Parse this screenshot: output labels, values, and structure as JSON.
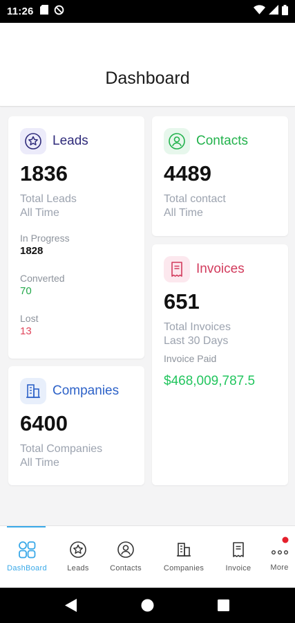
{
  "status_bar": {
    "time": "11:26",
    "left_icons": [
      "sd-card-icon",
      "do-not-disturb-icon"
    ],
    "right_icons": [
      "wifi-icon",
      "signal-icon",
      "battery-icon"
    ]
  },
  "app_bar": {
    "title": "Dashboard"
  },
  "cards": {
    "leads": {
      "label": "Leads",
      "icon": "star-badge-icon",
      "color": "#2e2a7a",
      "tile_bg": "#ecebfa",
      "count": "1836",
      "subtitle": "Total Leads",
      "period": "All Time",
      "stats": [
        {
          "label": "In Progress",
          "value": "1828",
          "color": "#111111"
        },
        {
          "label": "Converted",
          "value": "70",
          "color": "#22a84a"
        },
        {
          "label": "Lost",
          "value": "13",
          "color": "#e0445a"
        }
      ]
    },
    "contacts": {
      "label": "Contacts",
      "icon": "contact-icon",
      "color": "#22b24c",
      "tile_bg": "#e7f7ec",
      "count": "4489",
      "subtitle": "Total contact",
      "period": "All Time"
    },
    "invoices": {
      "label": "Invoices",
      "icon": "invoice-icon",
      "color": "#d23a5c",
      "tile_bg": "#fce8ee",
      "count": "651",
      "subtitle": "Total Invoices",
      "period": "Last 30 Days",
      "paid_label": "Invoice Paid",
      "paid_value": "$468,009,787.5",
      "paid_color": "#22c55e"
    },
    "companies": {
      "label": "Companies",
      "icon": "building-icon",
      "color": "#2d62c8",
      "tile_bg": "#e8effb",
      "count": "6400",
      "subtitle": "Total Companies",
      "period": "All Time"
    }
  },
  "bottom_nav": {
    "active_color": "#38a8e8",
    "items": [
      {
        "label": "DashBoard",
        "icon": "dashboard-grid-icon",
        "active": true
      },
      {
        "label": "Leads",
        "icon": "star-badge-icon",
        "active": false
      },
      {
        "label": "Contacts",
        "icon": "contact-icon",
        "active": false
      },
      {
        "label": "Companies",
        "icon": "building-icon",
        "active": false
      },
      {
        "label": "Invoice",
        "icon": "invoice-icon",
        "active": false
      },
      {
        "label": "More",
        "icon": "more-dots-icon",
        "active": false,
        "has_notification_dot": true
      }
    ]
  },
  "system_nav": [
    "back-icon",
    "home-icon",
    "recents-icon"
  ]
}
